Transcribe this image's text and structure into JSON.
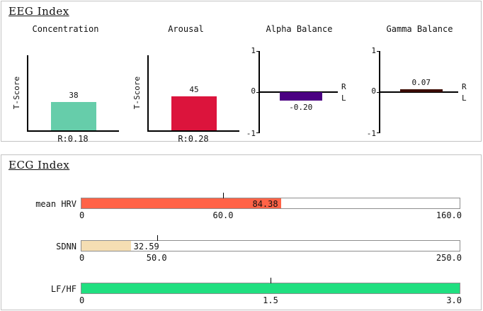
{
  "eeg_panel": {
    "title": "EEG Index"
  },
  "ecg_panel": {
    "title": "ECG Index"
  },
  "chart_data": [
    {
      "type": "bar",
      "panel": "EEG Index",
      "title": "Concentration",
      "ylabel": "T-Score",
      "values": [
        38
      ],
      "value_labels": [
        "38"
      ],
      "xlabel": "R:0.18",
      "ylim": [
        0,
        100
      ],
      "color": "#66cdaa",
      "grid": false
    },
    {
      "type": "bar",
      "panel": "EEG Index",
      "title": "Arousal",
      "ylabel": "T-Score",
      "values": [
        45
      ],
      "value_labels": [
        "45"
      ],
      "xlabel": "R:0.28",
      "ylim": [
        0,
        100
      ],
      "color": "#dc143c",
      "grid": false
    },
    {
      "type": "bar",
      "panel": "EEG Index",
      "title": "Alpha Balance",
      "values": [
        -0.2
      ],
      "value_labels": [
        "-0.20"
      ],
      "ylim": [
        -1,
        1
      ],
      "ytick_labels": [
        "1",
        "0",
        "-1"
      ],
      "side_labels": [
        "R",
        "L"
      ],
      "baseline": 0,
      "color": "#4b0082",
      "grid": false
    },
    {
      "type": "bar",
      "panel": "EEG Index",
      "title": "Gamma Balance",
      "values": [
        0.07
      ],
      "value_labels": [
        "0.07"
      ],
      "ylim": [
        -1,
        1
      ],
      "ytick_labels": [
        "1",
        "0",
        "-1"
      ],
      "side_labels": [
        "R",
        "L"
      ],
      "baseline": 0,
      "color": "#3d0c02",
      "grid": false
    },
    {
      "type": "bar",
      "orientation": "horizontal",
      "panel": "ECG Index",
      "title": "mean HRV",
      "values": [
        84.38
      ],
      "value_labels": [
        "84.38"
      ],
      "xlim": [
        0,
        160
      ],
      "xticks": [
        0,
        60,
        160
      ],
      "xtick_labels": [
        "0",
        "60.0",
        "160.0"
      ],
      "color": "#ff6347",
      "value_inside": true
    },
    {
      "type": "bar",
      "orientation": "horizontal",
      "panel": "ECG Index",
      "title": "SDNN",
      "values": [
        32.59
      ],
      "value_labels": [
        "32.59"
      ],
      "xlim": [
        0,
        250
      ],
      "xticks": [
        0,
        50,
        250
      ],
      "xtick_labels": [
        "0",
        "50.0",
        "250.0"
      ],
      "color": "#f5deb3",
      "value_inside": false
    },
    {
      "type": "bar",
      "orientation": "horizontal",
      "panel": "ECG Index",
      "title": "LF/HF",
      "values": [
        3.0
      ],
      "value_labels": [
        ""
      ],
      "xlim": [
        0,
        3
      ],
      "xticks": [
        0,
        1.5,
        3
      ],
      "xtick_labels": [
        "0",
        "1.5",
        "3.0"
      ],
      "color": "#20df80",
      "value_inside": false
    }
  ]
}
